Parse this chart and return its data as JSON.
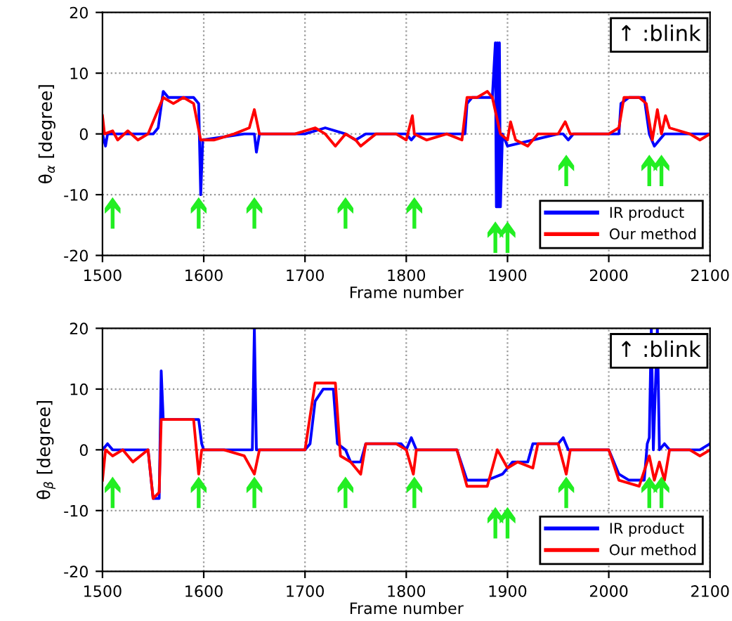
{
  "chart_data": [
    {
      "type": "line",
      "xlabel": "Frame number",
      "ylabel": "θ$_{α}$ [degree]",
      "xlim": [
        1500,
        2100
      ],
      "ylim": [
        -20,
        20
      ],
      "xticks": [
        1500,
        1600,
        1700,
        1800,
        1900,
        2000,
        2100
      ],
      "yticks": [
        -20,
        -10,
        0,
        10,
        20
      ],
      "grid": true,
      "legend": "bottom right",
      "series": [
        {
          "name": "IR product",
          "color": "#0000ff",
          "x": [
            1500,
            1503,
            1505,
            1550,
            1555,
            1560,
            1565,
            1590,
            1595,
            1597,
            1599,
            1640,
            1650,
            1652,
            1655,
            1700,
            1720,
            1740,
            1750,
            1760,
            1800,
            1805,
            1810,
            1858,
            1860,
            1865,
            1885,
            1888,
            1889,
            1890,
            1891,
            1892,
            1893,
            1895,
            1900,
            1950,
            1955,
            1960,
            1965,
            2010,
            2012,
            2020,
            2035,
            2040,
            2045,
            2050,
            2055,
            2100
          ],
          "values": [
            0,
            -2,
            0,
            0,
            1,
            7,
            6,
            6,
            5,
            -10,
            -1,
            0,
            0,
            -3,
            0,
            0,
            1,
            0,
            -1,
            0,
            0,
            -1,
            0,
            0,
            5,
            6,
            6,
            15,
            -12,
            15,
            -12,
            15,
            -12,
            0,
            -2,
            0,
            0,
            -1,
            0,
            0,
            5,
            6,
            6,
            0,
            -2,
            -1,
            0,
            0
          ]
        },
        {
          "name": "Our method",
          "color": "#ff0000",
          "x": [
            1500,
            1502,
            1510,
            1515,
            1525,
            1535,
            1545,
            1555,
            1560,
            1570,
            1580,
            1590,
            1597,
            1610,
            1630,
            1645,
            1650,
            1655,
            1670,
            1690,
            1710,
            1720,
            1730,
            1740,
            1750,
            1755,
            1770,
            1790,
            1800,
            1806,
            1808,
            1820,
            1840,
            1855,
            1860,
            1870,
            1880,
            1885,
            1893,
            1900,
            1903,
            1908,
            1920,
            1930,
            1950,
            1957,
            1962,
            1980,
            2000,
            2010,
            2015,
            2030,
            2037,
            2040,
            2043,
            2048,
            2052,
            2056,
            2060,
            2080,
            2090,
            2100
          ],
          "values": [
            3,
            0,
            0.5,
            -1,
            0.5,
            -1,
            0,
            4,
            6,
            5,
            6,
            5,
            -1,
            -1,
            0,
            1,
            4,
            0,
            0,
            0,
            1,
            0,
            -2,
            0,
            -1,
            -2,
            0,
            0,
            -1,
            3,
            0,
            -1,
            0,
            -1,
            6,
            6,
            7,
            6,
            0,
            -1,
            2,
            -1,
            -2,
            0,
            0,
            2,
            0,
            0,
            0,
            1,
            6,
            6,
            5,
            2,
            -1,
            4,
            0,
            3,
            1,
            0,
            -1,
            0
          ]
        },
        {
          "type": "scatter",
          "marker": "triangle",
          "color": "#22ee22",
          "x": [
            1510,
            1595,
            1650,
            1740,
            1808,
            1888,
            1900,
            1958,
            2040,
            2052
          ],
          "values": [
            -13,
            -13,
            -13,
            -13,
            -13,
            -17,
            -17,
            -6,
            -6,
            -6
          ]
        }
      ],
      "annotations": [
        "↑ :blink"
      ]
    },
    {
      "type": "line",
      "xlabel": "Frame number",
      "ylabel": "θ$_{β}$ [degree]",
      "xlim": [
        1500,
        2100
      ],
      "ylim": [
        -20,
        20
      ],
      "xticks": [
        1500,
        1600,
        1700,
        1800,
        1900,
        2000,
        2100
      ],
      "yticks": [
        -20,
        -10,
        0,
        10,
        20
      ],
      "grid": true,
      "legend": "bottom right",
      "series": [
        {
          "name": "IR product",
          "color": "#0000ff",
          "x": [
            1500,
            1505,
            1510,
            1545,
            1550,
            1556,
            1558,
            1560,
            1590,
            1595,
            1598,
            1600,
            1648,
            1650,
            1652,
            1700,
            1705,
            1710,
            1718,
            1728,
            1732,
            1740,
            1745,
            1755,
            1760,
            1795,
            1800,
            1805,
            1810,
            1850,
            1860,
            1880,
            1895,
            1905,
            1920,
            1925,
            1950,
            1955,
            1960,
            2000,
            2010,
            2020,
            2035,
            2038,
            2040,
            2042,
            2044,
            2048,
            2050,
            2055,
            2060,
            2090,
            2100
          ],
          "values": [
            0,
            1,
            0,
            0,
            -8,
            -8,
            13,
            5,
            5,
            5,
            1,
            0,
            0,
            20,
            0,
            0,
            1,
            8,
            10,
            10,
            1,
            0,
            -2,
            -2,
            1,
            1,
            0,
            2,
            0,
            0,
            -5,
            -5,
            -4,
            -2,
            -2,
            1,
            1,
            2,
            0,
            0,
            -4,
            -5,
            -5,
            1,
            2,
            20,
            0,
            20,
            0,
            1,
            0,
            0,
            1
          ]
        },
        {
          "name": "Our method",
          "color": "#ff0000",
          "x": [
            1500,
            1503,
            1510,
            1520,
            1530,
            1545,
            1550,
            1556,
            1558,
            1570,
            1590,
            1595,
            1598,
            1620,
            1640,
            1650,
            1655,
            1680,
            1700,
            1710,
            1730,
            1735,
            1745,
            1755,
            1760,
            1790,
            1800,
            1807,
            1810,
            1850,
            1860,
            1880,
            1890,
            1900,
            1910,
            1925,
            1930,
            1950,
            1958,
            1962,
            2000,
            2010,
            2030,
            2040,
            2045,
            2050,
            2055,
            2060,
            2080,
            2090,
            2100
          ],
          "values": [
            -5,
            0,
            -1,
            0,
            -2,
            0,
            -8,
            -7,
            5,
            5,
            5,
            -4,
            0,
            0,
            -1,
            -4,
            0,
            0,
            0,
            11,
            11,
            -1,
            -2,
            -4,
            1,
            1,
            0,
            -4,
            0,
            0,
            -6,
            -6,
            0,
            -3,
            -2,
            -3,
            1,
            1,
            -4,
            0,
            0,
            -5,
            -6,
            -1,
            -5,
            -2,
            -5,
            0,
            0,
            -1,
            0
          ]
        },
        {
          "type": "scatter",
          "marker": "triangle",
          "color": "#22ee22",
          "x": [
            1510,
            1595,
            1650,
            1740,
            1808,
            1888,
            1900,
            1958,
            2040,
            2052
          ],
          "values": [
            -7,
            -7,
            -7,
            -7,
            -7,
            -12,
            -12,
            -7,
            -7,
            -7
          ]
        }
      ],
      "annotations": [
        "↑ :blink"
      ]
    }
  ]
}
